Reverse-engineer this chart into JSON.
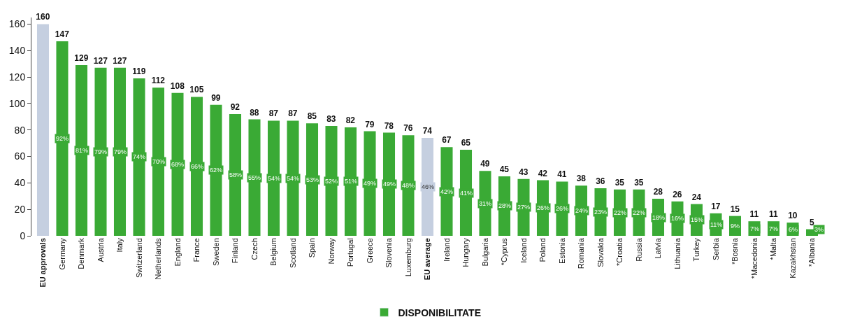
{
  "chart_data": {
    "type": "bar",
    "categories": [
      "EU approvals",
      "Germany",
      "Denmark",
      "Austria",
      "Italy",
      "Switzerland",
      "Netherlands",
      "England",
      "France",
      "Sweden",
      "Finland",
      "Czech",
      "Belgium",
      "Scotland",
      "Spain",
      "Norway",
      "Portugal",
      "Greece",
      "Slovenia",
      "Luxemburg",
      "EU average",
      "Ireland",
      "Hungary",
      "Bulgaria",
      "*Cyprus",
      "Iceland",
      "Poland",
      "Estonia",
      "Romania",
      "Slovakia",
      "*Croatia",
      "Russia",
      "Latvia",
      "Lithuania",
      "Turkey",
      "Serbia",
      "*Bosnia",
      "*Macedonia",
      "*Malta",
      "Kazakhstan",
      "*Albania"
    ],
    "series": [
      {
        "name": "DISPONIBILITATE",
        "color": "#3aaa35",
        "colors": [
          "#c5cfe0",
          "#3aaa35",
          "#3aaa35",
          "#3aaa35",
          "#3aaa35",
          "#3aaa35",
          "#3aaa35",
          "#3aaa35",
          "#3aaa35",
          "#3aaa35",
          "#3aaa35",
          "#3aaa35",
          "#3aaa35",
          "#3aaa35",
          "#3aaa35",
          "#3aaa35",
          "#3aaa35",
          "#3aaa35",
          "#3aaa35",
          "#3aaa35",
          "#c5cfe0",
          "#3aaa35",
          "#3aaa35",
          "#3aaa35",
          "#3aaa35",
          "#3aaa35",
          "#3aaa35",
          "#3aaa35",
          "#3aaa35",
          "#3aaa35",
          "#3aaa35",
          "#3aaa35",
          "#3aaa35",
          "#3aaa35",
          "#3aaa35",
          "#3aaa35",
          "#3aaa35",
          "#3aaa35",
          "#3aaa35",
          "#3aaa35",
          "#3aaa35"
        ],
        "values": [
          160,
          147,
          129,
          127,
          127,
          119,
          112,
          108,
          105,
          99,
          92,
          88,
          87,
          87,
          85,
          83,
          82,
          79,
          78,
          76,
          74,
          67,
          65,
          49,
          45,
          43,
          42,
          41,
          38,
          36,
          35,
          35,
          28,
          26,
          24,
          17,
          15,
          11,
          11,
          10,
          5
        ]
      }
    ],
    "annotations": [
      {
        "text": "92%",
        "x": "Germany",
        "y": 73.5
      },
      {
        "text": "81%",
        "x": "Denmark",
        "y": 64.5
      },
      {
        "text": "79%",
        "x": "Austria",
        "y": 63.5
      },
      {
        "text": "79%",
        "x": "Italy",
        "y": 63.5
      },
      {
        "text": "74%",
        "x": "Switzerland",
        "y": 59.5
      },
      {
        "text": "70%",
        "x": "Netherlands",
        "y": 56
      },
      {
        "text": "68%",
        "x": "England",
        "y": 54
      },
      {
        "text": "66%",
        "x": "France",
        "y": 52.5
      },
      {
        "text": "62%",
        "x": "Sweden",
        "y": 49.5
      },
      {
        "text": "58%",
        "x": "Finland",
        "y": 46
      },
      {
        "text": "55%",
        "x": "Czech",
        "y": 44
      },
      {
        "text": "54%",
        "x": "Belgium",
        "y": 43.5
      },
      {
        "text": "54%",
        "x": "Scotland",
        "y": 43.5
      },
      {
        "text": "53%",
        "x": "Spain",
        "y": 42.5
      },
      {
        "text": "52%",
        "x": "Norway",
        "y": 41.5
      },
      {
        "text": "51%",
        "x": "Portugal",
        "y": 41
      },
      {
        "text": "49%",
        "x": "Greece",
        "y": 39.5
      },
      {
        "text": "49%",
        "x": "Slovenia",
        "y": 39
      },
      {
        "text": "48%",
        "x": "Luxemburg",
        "y": 38
      },
      {
        "text": "46%",
        "x": "EU average",
        "y": 37
      },
      {
        "text": "42%",
        "x": "Ireland",
        "y": 33.5
      },
      {
        "text": "41%",
        "x": "Hungary",
        "y": 32.5
      },
      {
        "text": "31%",
        "x": "Bulgaria",
        "y": 24.5
      },
      {
        "text": "28%",
        "x": "*Cyprus",
        "y": 22.5
      },
      {
        "text": "27%",
        "x": "Iceland",
        "y": 21.5
      },
      {
        "text": "26%",
        "x": "Poland",
        "y": 21
      },
      {
        "text": "26%",
        "x": "Estonia",
        "y": 20.5
      },
      {
        "text": "24%",
        "x": "Romania",
        "y": 19
      },
      {
        "text": "23%",
        "x": "Slovakia",
        "y": 18
      },
      {
        "text": "22%",
        "x": "*Croatia",
        "y": 17.5
      },
      {
        "text": "22%",
        "x": "Russia",
        "y": 17.5
      },
      {
        "text": "18%",
        "x": "Latvia",
        "y": 14
      },
      {
        "text": "16%",
        "x": "Lithuania",
        "y": 13
      },
      {
        "text": "15%",
        "x": "Turkey",
        "y": 12
      },
      {
        "text": "11%",
        "x": "Serbia",
        "y": 8.5
      },
      {
        "text": "9%",
        "x": "*Bosnia",
        "y": 7.5
      },
      {
        "text": "7%",
        "x": "*Macedonia",
        "y": 5.5
      },
      {
        "text": "7%",
        "x": "*Malta",
        "y": 5.5
      },
      {
        "text": "6%",
        "x": "Kazakhstan",
        "y": 5
      },
      {
        "text": "3%",
        "x": "*Albania",
        "y": 5
      }
    ],
    "ylim": [
      0,
      165
    ],
    "yticks": [
      0,
      20,
      40,
      60,
      80,
      100,
      120,
      140,
      160
    ],
    "data_labels": true,
    "legend": "bottom"
  }
}
